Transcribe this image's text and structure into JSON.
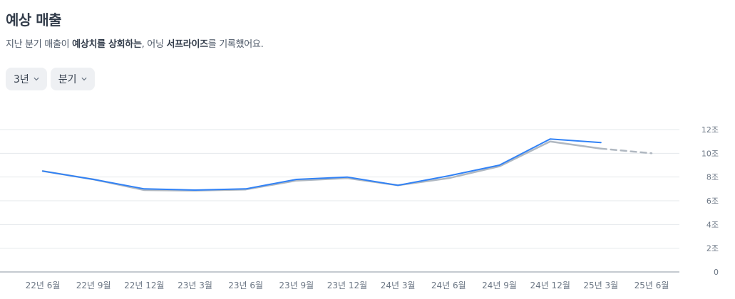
{
  "header": {
    "title": "예상 매출",
    "subtitle": {
      "p1": "지난 분기 매출이 ",
      "b1": "예상치를 상회하는",
      "p2": ", 어닝 ",
      "b2": "서프라이즈",
      "p3": "를 기록했어요."
    }
  },
  "filters": {
    "period": "3년",
    "interval": "분기"
  },
  "icons": {
    "dropdown": "chevron-down-icon"
  },
  "colors": {
    "actual": "#3182f6",
    "estimate": "#b0b8c1",
    "grid": "#e5e8eb",
    "axis": "#8b95a1"
  },
  "chart_data": {
    "type": "line",
    "categories": [
      "22년 6월",
      "22년 9월",
      "22년 12월",
      "23년 3월",
      "23년 6월",
      "23년 9월",
      "23년 12월",
      "24년 3월",
      "24년 6월",
      "24년 9월",
      "24년 12월",
      "25년 3월",
      "25년 6월"
    ],
    "series": [
      {
        "values": [
          8.5,
          7.8,
          7.0,
          6.9,
          7.0,
          7.8,
          8.0,
          7.3,
          8.1,
          9.0,
          11.2,
          10.9,
          null
        ]
      },
      {
        "values": [
          8.5,
          7.8,
          6.9,
          6.85,
          6.95,
          7.7,
          7.9,
          7.3,
          7.9,
          8.9,
          11.0,
          10.4,
          10.0
        ],
        "dashed_from_index": 11
      }
    ],
    "yticks": [
      0,
      2,
      4,
      6,
      8,
      10,
      12
    ],
    "ytick_labels": [
      "0",
      "2조",
      "4조",
      "6조",
      "8조",
      "10조",
      "12조"
    ],
    "ylim": [
      0,
      12
    ],
    "grid": true
  }
}
